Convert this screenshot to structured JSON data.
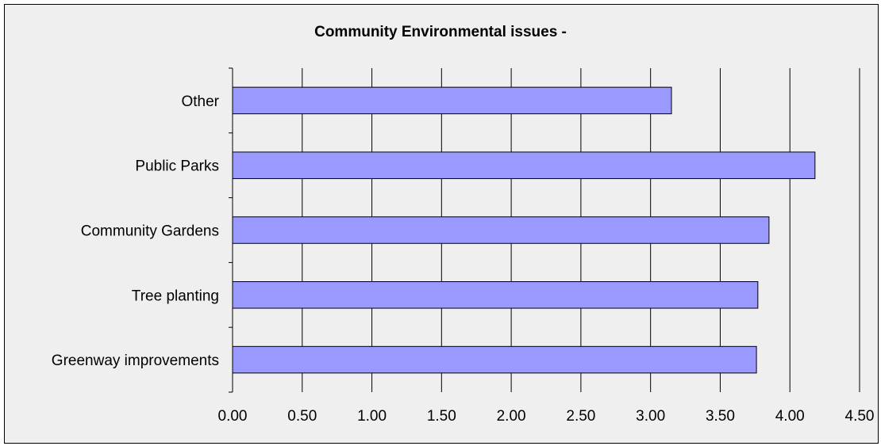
{
  "chart_data": {
    "type": "bar",
    "orientation": "horizontal",
    "title": "Community Environmental issues -",
    "categories": [
      "Greenway improvements",
      "Tree planting",
      "Community Gardens",
      "Public Parks",
      "Other"
    ],
    "values": [
      3.76,
      3.77,
      3.85,
      4.18,
      3.15
    ],
    "xlim": [
      0,
      4.5
    ],
    "x_ticks": [
      "0.00",
      "0.50",
      "1.00",
      "1.50",
      "2.00",
      "2.50",
      "3.00",
      "3.50",
      "4.00",
      "4.50"
    ],
    "xlabel": "",
    "ylabel": "",
    "grid": "vertical",
    "legend": "none",
    "bar_color": "#9999ff",
    "plot_background": "#efefef"
  }
}
